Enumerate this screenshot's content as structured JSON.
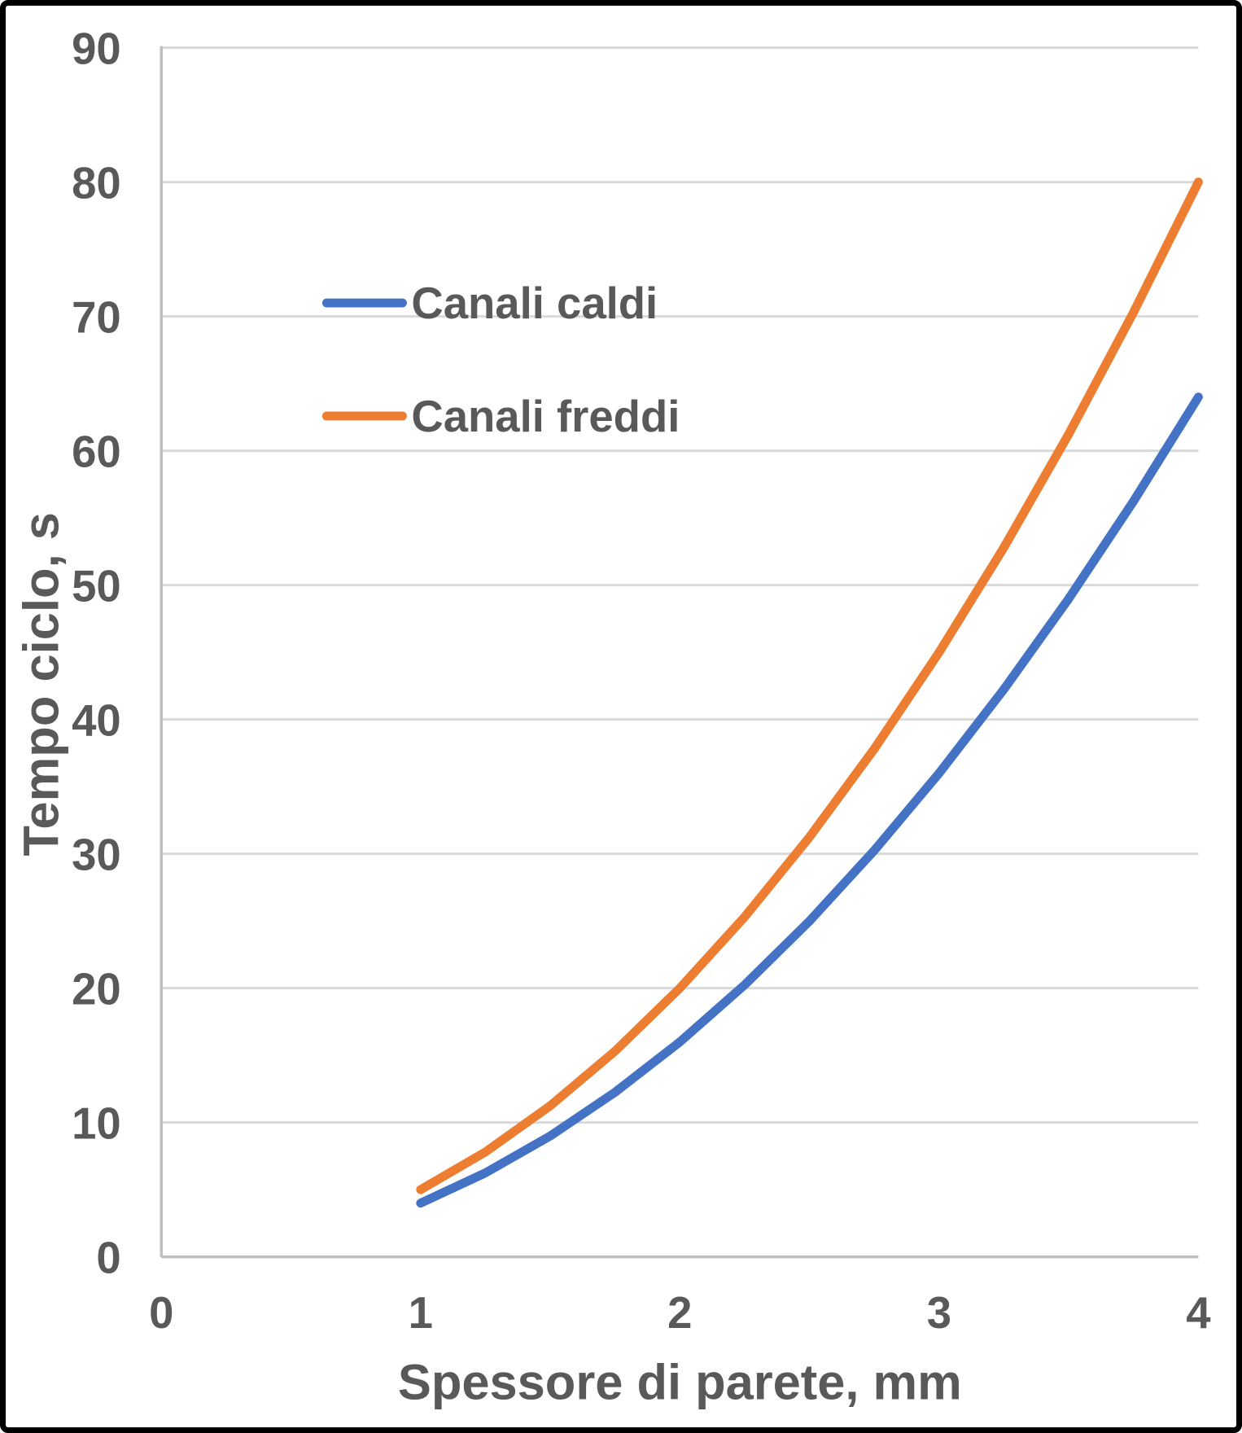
{
  "chart_data": {
    "type": "line",
    "title": "",
    "xlabel": "Spessore di parete, mm",
    "ylabel": "Tempo ciclo, s",
    "xlim": [
      0,
      4
    ],
    "ylim": [
      0,
      90
    ],
    "xticks": [
      0,
      1,
      2,
      3,
      4
    ],
    "yticks": [
      0,
      10,
      20,
      30,
      40,
      50,
      60,
      70,
      80,
      90
    ],
    "grid": "horizontal",
    "legend_position": "inside-upper-left",
    "series": [
      {
        "name": "Canali caldi",
        "color": "#4472C4",
        "x": [
          1,
          1.25,
          1.5,
          1.75,
          2,
          2.25,
          2.5,
          2.75,
          3,
          3.25,
          3.5,
          3.75,
          4
        ],
        "y": [
          4,
          6.25,
          9,
          12.25,
          16,
          20.25,
          25,
          30.25,
          36,
          42.25,
          49,
          56.25,
          64
        ]
      },
      {
        "name": "Canali freddi",
        "color": "#ED7D31",
        "x": [
          1,
          1.25,
          1.5,
          1.75,
          2,
          2.25,
          2.5,
          2.75,
          3,
          3.25,
          3.5,
          3.75,
          4
        ],
        "y": [
          5,
          7.8125,
          11.25,
          15.3125,
          20,
          25.3125,
          31.25,
          37.8125,
          45,
          52.8125,
          61.25,
          70.3125,
          80
        ]
      }
    ],
    "colors": {
      "text": "#595959",
      "gridline": "#D9D9D9",
      "axis_line": "#BFBFBF",
      "background": "#FFFFFF",
      "frame_border": "#000000"
    }
  }
}
